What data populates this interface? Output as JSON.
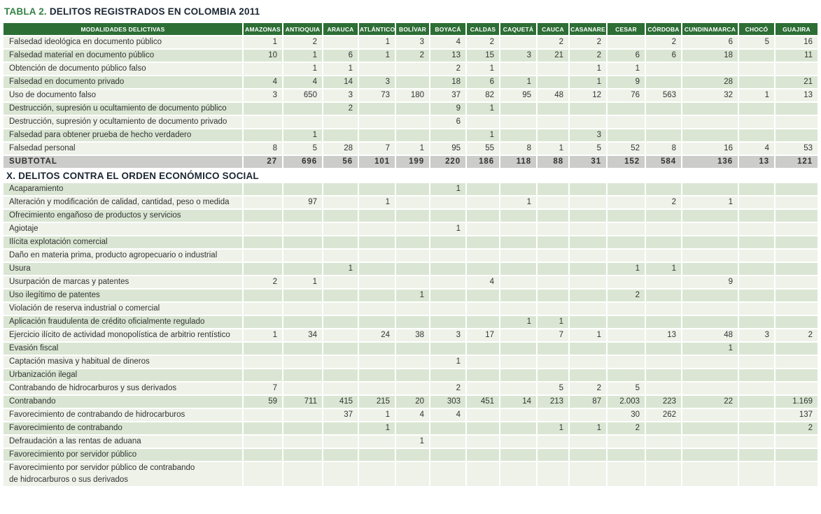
{
  "title": {
    "prefix": "TABLA 2.",
    "text": "DELITOS REGISTRADOS EN COLOMBIA 2011"
  },
  "colors": {
    "header_bg": "#2d6e35",
    "row_green": "#dae6d3",
    "row_light": "#eef2e9",
    "subtotal_bg": "#cccdca",
    "title_green": "#338145",
    "title_dark": "#1b2733"
  },
  "table": {
    "label_header": "MODALIDADES DELICTIVAS",
    "columns": [
      "AMAZONAS",
      "ANTIOQUIA",
      "ARAUCA",
      "ATLÁNTICO",
      "BOLÍVAR",
      "BOYACÁ",
      "CALDAS",
      "CAQUETÁ",
      "CAUCA",
      "CASANARE",
      "CESAR",
      "CÓRDOBA",
      "CUNDINAMARCA",
      "CHOCÓ",
      "GUAJIRA"
    ],
    "sections": [
      {
        "rows": [
          {
            "label": "Falsedad ideológica en documento público",
            "values": [
              "1",
              "2",
              "",
              "1",
              "3",
              "4",
              "2",
              "",
              "2",
              "2",
              "",
              "2",
              "6",
              "5",
              "16"
            ]
          },
          {
            "label": "Falsedad material en documento público",
            "values": [
              "10",
              "1",
              "6",
              "1",
              "2",
              "13",
              "15",
              "3",
              "21",
              "2",
              "6",
              "6",
              "18",
              "",
              "11"
            ]
          },
          {
            "label": "Obtención de documento público falso",
            "values": [
              "",
              "1",
              "1",
              "",
              "",
              "2",
              "1",
              "",
              "",
              "1",
              "1",
              "",
              "",
              "",
              ""
            ]
          },
          {
            "label": "Falsedad en documento privado",
            "values": [
              "4",
              "4",
              "14",
              "3",
              "",
              "18",
              "6",
              "1",
              "",
              "1",
              "9",
              "",
              "28",
              "",
              "21"
            ]
          },
          {
            "label": "Uso de documento falso",
            "values": [
              "3",
              "650",
              "3",
              "73",
              "180",
              "37",
              "82",
              "95",
              "48",
              "12",
              "76",
              "563",
              "32",
              "1",
              "13"
            ]
          },
          {
            "label": "Destrucción, supresión u ocultamiento de documento público",
            "values": [
              "",
              "",
              "2",
              "",
              "",
              "9",
              "1",
              "",
              "",
              "",
              "",
              "",
              "",
              "",
              ""
            ]
          },
          {
            "label": "Destrucción, supresión y ocultamiento de documento privado",
            "values": [
              "",
              "",
              "",
              "",
              "",
              "6",
              "",
              "",
              "",
              "",
              "",
              "",
              "",
              "",
              ""
            ]
          },
          {
            "label": "Falsedad para obtener prueba de hecho verdadero",
            "values": [
              "",
              "1",
              "",
              "",
              "",
              "",
              "1",
              "",
              "",
              "3",
              "",
              "",
              "",
              "",
              ""
            ]
          },
          {
            "label": "Falsedad personal",
            "values": [
              "8",
              "5",
              "28",
              "7",
              "1",
              "95",
              "55",
              "8",
              "1",
              "5",
              "52",
              "8",
              "16",
              "4",
              "53"
            ]
          },
          {
            "label": "SUBTOTAL",
            "type": "subtotal",
            "values": [
              "27",
              "696",
              "56",
              "101",
              "199",
              "220",
              "186",
              "118",
              "88",
              "31",
              "152",
              "584",
              "136",
              "13",
              "121"
            ]
          }
        ]
      },
      {
        "header": "X. DELITOS CONTRA EL ORDEN ECONÓMICO SOCIAL",
        "rows": [
          {
            "label": "Acaparamiento",
            "values": [
              "",
              "",
              "",
              "",
              "",
              "1",
              "",
              "",
              "",
              "",
              "",
              "",
              "",
              "",
              ""
            ]
          },
          {
            "label": "Alteración y modificación de calidad, cantidad, peso o medida",
            "values": [
              "",
              "97",
              "",
              "1",
              "",
              "",
              "",
              "1",
              "",
              "",
              "",
              "2",
              "1",
              "",
              ""
            ]
          },
          {
            "label": "Ofrecimiento engañoso de productos y servicios",
            "values": [
              "",
              "",
              "",
              "",
              "",
              "",
              "",
              "",
              "",
              "",
              "",
              "",
              "",
              "",
              ""
            ]
          },
          {
            "label": "Agiotaje",
            "values": [
              "",
              "",
              "",
              "",
              "",
              "1",
              "",
              "",
              "",
              "",
              "",
              "",
              "",
              "",
              ""
            ]
          },
          {
            "label": "Ilícita explotación comercial",
            "values": [
              "",
              "",
              "",
              "",
              "",
              "",
              "",
              "",
              "",
              "",
              "",
              "",
              "",
              "",
              ""
            ]
          },
          {
            "label": "Daño en materia prima, producto agropecuario o industrial",
            "values": [
              "",
              "",
              "",
              "",
              "",
              "",
              "",
              "",
              "",
              "",
              "",
              "",
              "",
              "",
              ""
            ]
          },
          {
            "label": "Usura",
            "values": [
              "",
              "",
              "1",
              "",
              "",
              "",
              "",
              "",
              "",
              "",
              "1",
              "1",
              "",
              "",
              ""
            ]
          },
          {
            "label": "Usurpación de marcas y patentes",
            "values": [
              "2",
              "1",
              "",
              "",
              "",
              "",
              "4",
              "",
              "",
              "",
              "",
              "",
              "9",
              "",
              ""
            ]
          },
          {
            "label": "Uso ilegítimo de patentes",
            "values": [
              "",
              "",
              "",
              "",
              "1",
              "",
              "",
              "",
              "",
              "",
              "2",
              "",
              "",
              "",
              ""
            ]
          },
          {
            "label": "Violación de reserva industrial o comercial",
            "values": [
              "",
              "",
              "",
              "",
              "",
              "",
              "",
              "",
              "",
              "",
              "",
              "",
              "",
              "",
              ""
            ]
          },
          {
            "label": "Aplicación fraudulenta de crédito oficialmente regulado",
            "values": [
              "",
              "",
              "",
              "",
              "",
              "",
              "",
              "1",
              "1",
              "",
              "",
              "",
              "",
              "",
              ""
            ]
          },
          {
            "label": "Ejercicio ilícito de actividad monopolística de arbitrio rentístico",
            "values": [
              "1",
              "34",
              "",
              "24",
              "38",
              "3",
              "17",
              "",
              "7",
              "1",
              "",
              "13",
              "48",
              "3",
              "2"
            ]
          },
          {
            "label": "Evasión fiscal",
            "values": [
              "",
              "",
              "",
              "",
              "",
              "",
              "",
              "",
              "",
              "",
              "",
              "",
              "1",
              "",
              ""
            ]
          },
          {
            "label": "Captación masiva y habitual de dineros",
            "values": [
              "",
              "",
              "",
              "",
              "",
              "1",
              "",
              "",
              "",
              "",
              "",
              "",
              "",
              "",
              ""
            ]
          },
          {
            "label": "Urbanización ilegal",
            "values": [
              "",
              "",
              "",
              "",
              "",
              "",
              "",
              "",
              "",
              "",
              "",
              "",
              "",
              "",
              ""
            ]
          },
          {
            "label": "Contrabando de hidrocarburos y sus derivados",
            "values": [
              "7",
              "",
              "",
              "",
              "",
              "2",
              "",
              "",
              "5",
              "2",
              "5",
              "",
              "",
              "",
              ""
            ]
          },
          {
            "label": "Contrabando",
            "values": [
              "59",
              "711",
              "415",
              "215",
              "20",
              "303",
              "451",
              "14",
              "213",
              "87",
              "2.003",
              "223",
              "22",
              "",
              "1.169"
            ]
          },
          {
            "label": "Favorecimiento de contrabando de hidrocarburos",
            "values": [
              "",
              "",
              "37",
              "1",
              "4",
              "4",
              "",
              "",
              "",
              "",
              "30",
              "262",
              "",
              "",
              "137"
            ]
          },
          {
            "label": "Favorecimiento de contrabando",
            "values": [
              "",
              "",
              "",
              "1",
              "",
              "",
              "",
              "",
              "1",
              "1",
              "2",
              "",
              "",
              "",
              "2"
            ]
          },
          {
            "label": "Defraudación a las rentas de aduana",
            "values": [
              "",
              "",
              "",
              "",
              "1",
              "",
              "",
              "",
              "",
              "",
              "",
              "",
              "",
              "",
              ""
            ]
          },
          {
            "label": "Favorecimiento por servidor público",
            "values": [
              "",
              "",
              "",
              "",
              "",
              "",
              "",
              "",
              "",
              "",
              "",
              "",
              "",
              "",
              ""
            ]
          },
          {
            "label": "Favorecimiento por servidor público de contrabando\nde hidrocarburos o sus derivados",
            "values": [
              "",
              "",
              "",
              "",
              "",
              "",
              "",
              "",
              "",
              "",
              "",
              "",
              "",
              "",
              ""
            ]
          }
        ]
      }
    ]
  }
}
